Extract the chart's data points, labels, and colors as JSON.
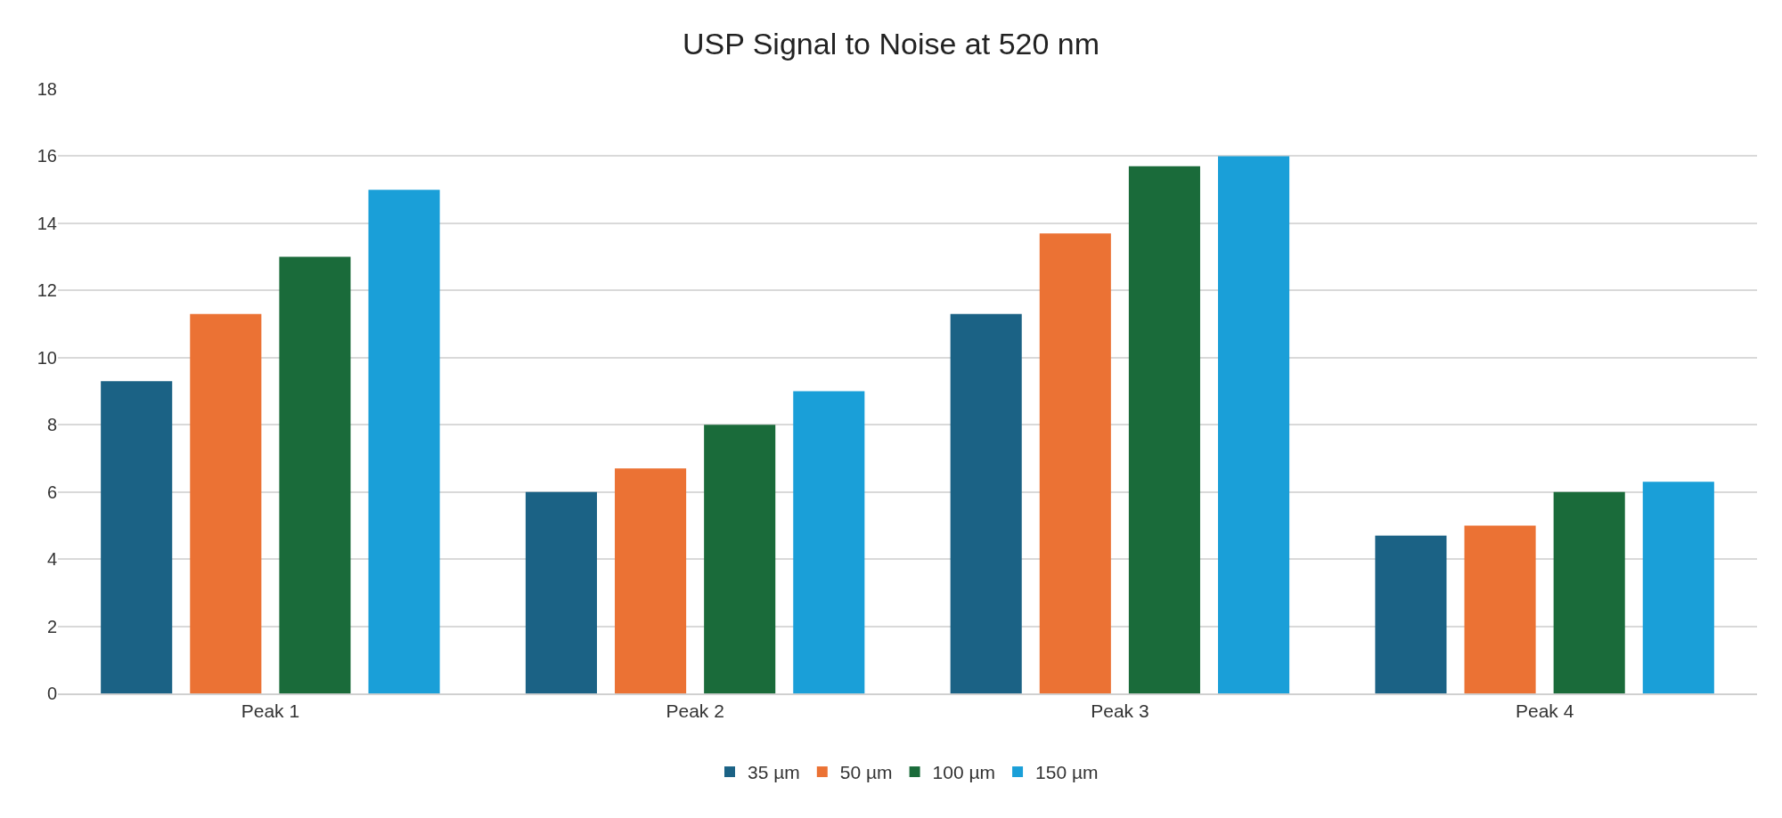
{
  "chart_data": {
    "type": "bar",
    "title": "USP Signal to Noise at 520 nm",
    "categories": [
      "Peak 1",
      "Peak 2",
      "Peak 3",
      "Peak 4"
    ],
    "series": [
      {
        "name": "35 µm",
        "color": "#1b6285",
        "values": [
          9.3,
          6,
          11.3,
          4.7
        ]
      },
      {
        "name": "50 µm",
        "color": "#eb7234",
        "values": [
          11.3,
          6.7,
          13.7,
          5
        ]
      },
      {
        "name": "100 µm",
        "color": "#1a6b3a",
        "values": [
          13,
          8,
          15.7,
          6
        ]
      },
      {
        "name": "150 µm",
        "color": "#1a9fd8",
        "values": [
          15,
          9,
          16,
          6.3
        ]
      }
    ],
    "ylim": [
      0,
      18
    ],
    "yticks": [
      0,
      2,
      4,
      6,
      8,
      10,
      12,
      14,
      16,
      18
    ],
    "grid": "y",
    "legend": "bottom"
  }
}
